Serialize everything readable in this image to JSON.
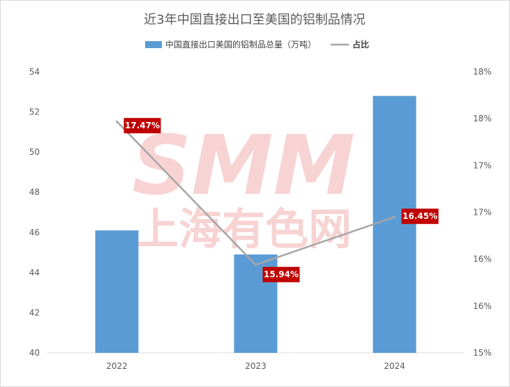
{
  "chart_data": {
    "type": "bar",
    "title": "近3年中国直接出口至美国的铝制品情况",
    "categories": [
      "2022",
      "2023",
      "2024"
    ],
    "series": [
      {
        "name": "中国直接出口美国的铝制品总量（万吨）",
        "type": "bar",
        "axis": "left",
        "color": "#5b9bd5",
        "values": [
          46.1,
          44.9,
          52.8
        ]
      },
      {
        "name": "占比",
        "type": "line",
        "axis": "right",
        "color": "#a6a6a6",
        "values": [
          0.1747,
          0.1594,
          0.1645
        ],
        "labels": [
          "17.47%",
          "15.94%",
          "16.45%"
        ]
      }
    ],
    "y_left": {
      "min": 40,
      "max": 54,
      "ticks": [
        "40",
        "42",
        "44",
        "46",
        "48",
        "50",
        "52",
        "54"
      ]
    },
    "y_right": {
      "min": 0.15,
      "max": 0.18,
      "ticks": [
        "15%",
        "16%",
        "16%",
        "17%",
        "17%",
        "18%",
        "18%"
      ]
    },
    "label_color": "#c00000",
    "legend_position": "top",
    "grid": false,
    "watermark": {
      "line1": "SMM",
      "line2": "上海有色网"
    }
  }
}
